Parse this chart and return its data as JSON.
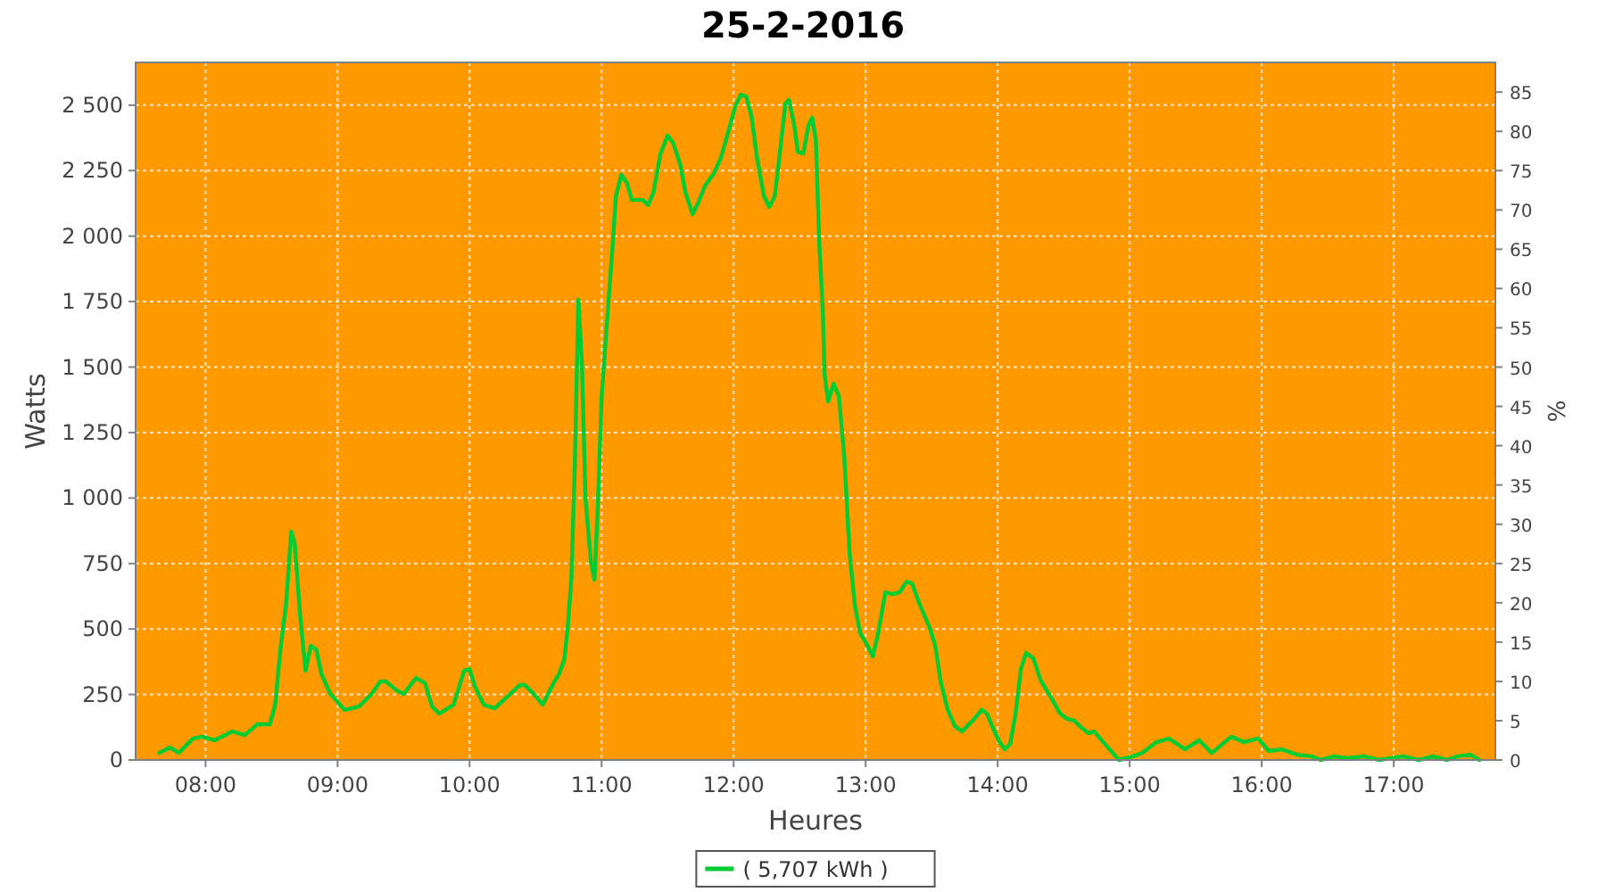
{
  "chart_data": {
    "type": "line",
    "title": "25-2-2016",
    "xlabel": "Heures",
    "ylabel": "Watts",
    "y2label": "%",
    "xlim": [
      7.47,
      17.77
    ],
    "xticks": [
      {
        "value": 8,
        "label": "08:00"
      },
      {
        "value": 9,
        "label": "09:00"
      },
      {
        "value": 10,
        "label": "10:00"
      },
      {
        "value": 11,
        "label": "11:00"
      },
      {
        "value": 12,
        "label": "12:00"
      },
      {
        "value": 13,
        "label": "13:00"
      },
      {
        "value": 14,
        "label": "14:00"
      },
      {
        "value": 15,
        "label": "15:00"
      },
      {
        "value": 16,
        "label": "16:00"
      },
      {
        "value": 17,
        "label": "17:00"
      }
    ],
    "ylim": [
      0,
      2663
    ],
    "yticks": [
      0,
      250,
      500,
      750,
      {
        "value": 1000,
        "label": "1 000"
      },
      {
        "value": 1250,
        "label": "1 250"
      },
      {
        "value": 1500,
        "label": "1 500"
      },
      {
        "value": 1750,
        "label": "1 750"
      },
      {
        "value": 2000,
        "label": "2 000"
      },
      {
        "value": 2250,
        "label": "2 250"
      },
      {
        "value": 2500,
        "label": "2 500"
      }
    ],
    "y2lim": [
      0,
      88.77
    ],
    "y2ticks": [
      0,
      5,
      10,
      15,
      20,
      25,
      30,
      35,
      40,
      45,
      50,
      55,
      60,
      65,
      70,
      75,
      80,
      85
    ],
    "grid": true,
    "legend": "bottom",
    "marker": "none",
    "line_style": "solid",
    "x": [
      7.649,
      7.73,
      7.797,
      7.905,
      7.973,
      8.068,
      8.203,
      8.297,
      8.392,
      8.486,
      8.527,
      8.568,
      8.608,
      8.649,
      8.676,
      8.716,
      8.757,
      8.797,
      8.838,
      8.878,
      8.946,
      9.054,
      9.162,
      9.257,
      9.324,
      9.365,
      9.446,
      9.5,
      9.595,
      9.662,
      9.716,
      9.77,
      9.878,
      9.959,
      10.0,
      10.041,
      10.108,
      10.189,
      10.324,
      10.378,
      10.419,
      10.473,
      10.554,
      10.635,
      10.676,
      10.716,
      10.743,
      10.77,
      10.797,
      10.824,
      10.851,
      10.878,
      10.919,
      10.946,
      10.973,
      11.0,
      11.041,
      11.081,
      11.108,
      11.149,
      11.189,
      11.23,
      11.311,
      11.351,
      11.392,
      11.446,
      11.5,
      11.541,
      11.595,
      11.635,
      11.689,
      11.73,
      11.784,
      11.851,
      11.905,
      11.959,
      12.014,
      12.054,
      12.095,
      12.135,
      12.176,
      12.23,
      12.27,
      12.311,
      12.351,
      12.392,
      12.419,
      12.459,
      12.486,
      12.527,
      12.568,
      12.595,
      12.622,
      12.649,
      12.676,
      12.689,
      12.716,
      12.757,
      12.797,
      12.838,
      12.878,
      12.919,
      12.959,
      13.014,
      13.054,
      13.095,
      13.149,
      13.203,
      13.257,
      13.311,
      13.351,
      13.405,
      13.486,
      13.527,
      13.568,
      13.622,
      13.676,
      13.73,
      13.824,
      13.878,
      13.919,
      13.959,
      14.014,
      14.054,
      14.095,
      14.135,
      14.176,
      14.216,
      14.27,
      14.324,
      14.419,
      14.473,
      14.527,
      14.581,
      14.635,
      14.689,
      14.73,
      14.824,
      14.919,
      15.027,
      15.095,
      15.203,
      15.297,
      15.419,
      15.527,
      15.622,
      15.77,
      15.865,
      15.973,
      16.054,
      16.149,
      16.27,
      16.378,
      16.446,
      16.554,
      16.649,
      16.77,
      16.892,
      17.068,
      17.189,
      17.297,
      17.405,
      17.486,
      17.581,
      17.649
    ],
    "series": [
      {
        "name": "( 5,707 kWh )",
        "color": "#00cc33",
        "values": [
          27,
          48,
          27,
          82,
          89,
          75,
          109,
          95,
          136,
          136,
          211,
          429,
          586,
          872,
          824,
          552,
          341,
          436,
          422,
          327,
          252,
          191,
          204,
          252,
          300,
          300,
          266,
          252,
          313,
          293,
          204,
          177,
          211,
          341,
          347,
          279,
          211,
          197,
          259,
          286,
          286,
          259,
          211,
          293,
          327,
          381,
          504,
          688,
          1130,
          1757,
          1505,
          994,
          756,
          688,
          994,
          1389,
          1675,
          1948,
          2152,
          2234,
          2206,
          2138,
          2138,
          2118,
          2166,
          2315,
          2384,
          2356,
          2275,
          2166,
          2084,
          2125,
          2193,
          2240,
          2302,
          2397,
          2499,
          2540,
          2533,
          2458,
          2302,
          2152,
          2111,
          2152,
          2322,
          2506,
          2520,
          2424,
          2322,
          2315,
          2424,
          2452,
          2370,
          1968,
          1709,
          1471,
          1369,
          1437,
          1389,
          1158,
          790,
          586,
          484,
          436,
          395,
          484,
          640,
          633,
          640,
          681,
          674,
          599,
          504,
          436,
          300,
          191,
          129,
          109,
          157,
          191,
          177,
          129,
          68,
          41,
          61,
          177,
          347,
          409,
          388,
          306,
          225,
          177,
          157,
          150,
          123,
          102,
          109,
          54,
          0,
          14,
          27,
          68,
          82,
          41,
          75,
          27,
          89,
          68,
          82,
          34,
          41,
          20,
          14,
          0,
          14,
          7,
          14,
          0,
          14,
          0,
          14,
          0,
          14,
          20,
          0
        ]
      }
    ]
  }
}
